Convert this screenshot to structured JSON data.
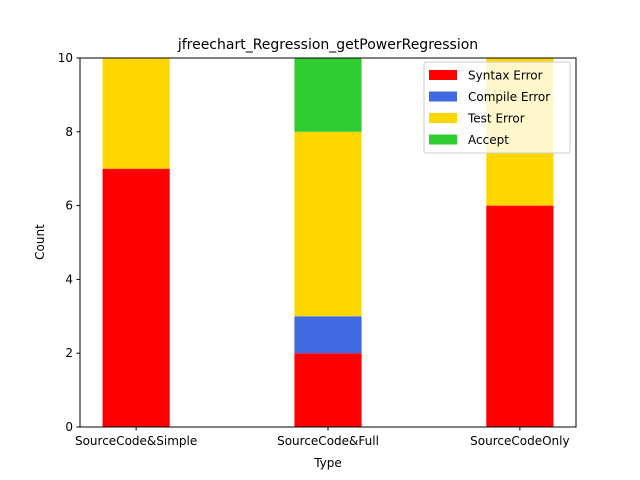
{
  "chart_data": {
    "type": "bar",
    "stacked": true,
    "title": "jfreechart_Regression_getPowerRegression",
    "xlabel": "Type",
    "ylabel": "Count",
    "categories": [
      "SourceCode&Simple",
      "SourceCode&Full",
      "SourceCodeOnly"
    ],
    "ylim": [
      0,
      10
    ],
    "yticks": [
      0,
      2,
      4,
      6,
      8,
      10
    ],
    "grid": false,
    "legend_position": "top-right",
    "series": [
      {
        "name": "Syntax Error",
        "color": "#ff0000",
        "values": [
          7,
          2,
          6
        ]
      },
      {
        "name": "Compile Error",
        "color": "#4169e1",
        "values": [
          0,
          1,
          0
        ]
      },
      {
        "name": "Test Error",
        "color": "#ffd700",
        "values": [
          3,
          5,
          4
        ]
      },
      {
        "name": "Accept",
        "color": "#32cd32",
        "values": [
          0,
          2,
          0
        ]
      }
    ]
  }
}
